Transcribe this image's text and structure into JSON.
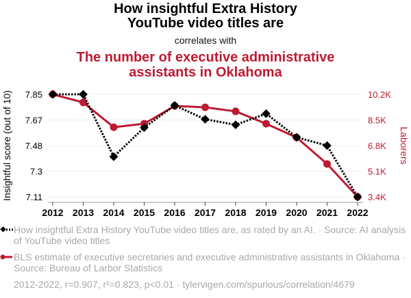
{
  "header": {
    "title": "How insightful Extra History YouTube video titles are",
    "connector": "correlates with",
    "title2": "The number of executive administrative assistants in Oklahoma"
  },
  "colors": {
    "series1": "#000000",
    "series2": "#be1a32",
    "grid": "#eeeeee",
    "axis": "#999999",
    "muted_text": "#a8a8a8"
  },
  "legend": {
    "series1": "How insightful Extra History YouTube video titles are, as rated by an AI. · Source: AI analysis of YouTube video titles",
    "series2": "BLS estimate of executive secretaries and executive administrative assistants in Oklahoma · Source: Bureau of Larbor Statistics"
  },
  "footer": {
    "text": "2012-2022, r=0.907, r²=0.823, p<0.01 · tylervigen.com/spurious/correlation/4679"
  },
  "chart_data": {
    "type": "line",
    "title": "How insightful Extra History YouTube video titles are correlates with The number of executive administrative assistants in Oklahoma",
    "xlabel": "",
    "x": [
      "2012",
      "2013",
      "2014",
      "2015",
      "2016",
      "2017",
      "2018",
      "2019",
      "2020",
      "2021",
      "2022"
    ],
    "grid": true,
    "legend_position": "bottom",
    "y_left": {
      "label": "Insightful score (out of 10)",
      "ticks": [
        "7.11",
        "7.3",
        "7.48",
        "7.67",
        "7.85"
      ],
      "range": [
        7.11,
        7.85
      ]
    },
    "y_right": {
      "label": "Laborers",
      "ticks": [
        "3.4K",
        "5.1K",
        "6.8K",
        "8.5K",
        "10.2K"
      ],
      "range": [
        3400,
        10200
      ]
    },
    "series": [
      {
        "name": "How insightful Extra History YouTube video titles are, as rated by an AI.",
        "axis": "left",
        "style": "dotted",
        "marker": "diamond",
        "values": [
          7.85,
          7.85,
          7.4,
          7.61,
          7.77,
          7.67,
          7.63,
          7.71,
          7.54,
          7.48,
          7.11
        ]
      },
      {
        "name": "BLS estimate of executive secretaries and executive administrative assistants in Oklahoma",
        "axis": "right",
        "style": "solid",
        "marker": "circle",
        "values": [
          10200,
          9660,
          8020,
          8250,
          9430,
          9340,
          9070,
          8250,
          7340,
          5580,
          3400
        ]
      }
    ]
  }
}
